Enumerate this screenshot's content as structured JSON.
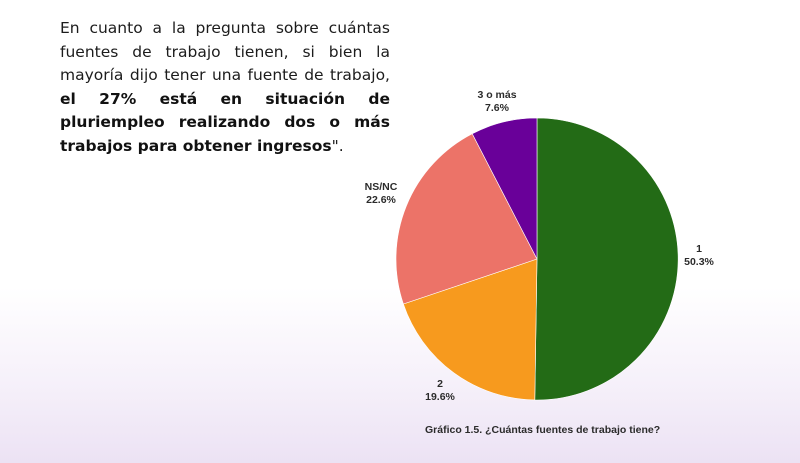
{
  "intro": {
    "text_before": "En cuanto a la pregunta sobre cuántas fuentes de trabajo tienen, si bien la mayoría dijo tener una fuente de trabajo, ",
    "text_bold": "el 27% está en situación de pluriempleo realizando dos o más trabajos para obtener ingresos",
    "text_after": "\"."
  },
  "chart_data": {
    "type": "pie",
    "caption": "Gráfico 1.5. ¿Cuántas fuentes de trabajo tiene?",
    "slices": [
      {
        "label": "1",
        "value": 50.3,
        "value_label": "50.3%",
        "color": "#236b16"
      },
      {
        "label": "2",
        "value": 19.6,
        "value_label": "19.6%",
        "color": "#f79a1e"
      },
      {
        "label": "NS/NC",
        "value": 22.6,
        "value_label": "22.6%",
        "color": "#ec7368"
      },
      {
        "label": "3 o más",
        "value": 7.6,
        "value_label": "7.6%",
        "color": "#690099"
      }
    ],
    "start_angle": "12 o'clock",
    "direction": "clockwise"
  }
}
